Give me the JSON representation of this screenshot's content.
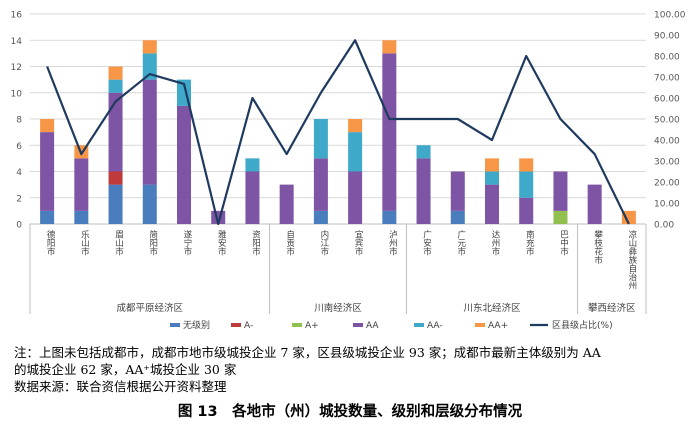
{
  "chart_data": {
    "type": "bar",
    "stacked": true,
    "categories": [
      "德阳市",
      "乐山市",
      "眉山市",
      "简阳市",
      "遂宁市",
      "雅安市",
      "资阳市",
      "自贡市",
      "内江市",
      "宜宾市",
      "泸州市",
      "广安市",
      "广元市",
      "达州市",
      "南充市",
      "巴中市",
      "攀枝花市",
      "凉山彝族自治州"
    ],
    "series": [
      {
        "name": "无级别",
        "color": "#4a7dbd",
        "values": [
          1,
          1,
          3,
          3,
          0,
          0,
          0,
          0,
          1,
          0,
          1,
          0,
          1,
          0,
          0,
          0,
          0,
          0
        ]
      },
      {
        "name": "A-",
        "color": "#c0393b",
        "values": [
          0,
          0,
          1,
          0,
          0,
          0,
          0,
          0,
          0,
          0,
          0,
          0,
          0,
          0,
          0,
          0,
          0,
          0
        ]
      },
      {
        "name": "A+",
        "color": "#92c050",
        "values": [
          0,
          0,
          0,
          0,
          0,
          0,
          0,
          0,
          0,
          0,
          0,
          0,
          0,
          0,
          0,
          1,
          0,
          0
        ]
      },
      {
        "name": "AA",
        "color": "#7e54a4",
        "values": [
          6,
          4,
          6,
          8,
          9,
          1,
          4,
          3,
          4,
          4,
          12,
          5,
          3,
          3,
          2,
          3,
          3,
          0
        ]
      },
      {
        "name": "AA-",
        "color": "#3fa9c9",
        "values": [
          0,
          0,
          1,
          2,
          2,
          0,
          1,
          0,
          3,
          3,
          0,
          1,
          0,
          1,
          2,
          0,
          0,
          0
        ]
      },
      {
        "name": "AA+",
        "color": "#f79646",
        "values": [
          1,
          1,
          1,
          1,
          0,
          0,
          0,
          0,
          0,
          1,
          1,
          0,
          0,
          1,
          1,
          0,
          0,
          1
        ]
      }
    ],
    "line": {
      "name": "区县级占比(%)",
      "color": "#1f3a5f",
      "axis": "right",
      "values": [
        75,
        33.3,
        58.3,
        71.4,
        66.7,
        0,
        60,
        33.3,
        62.5,
        87.5,
        50,
        50,
        50,
        40,
        80,
        50,
        33.3,
        0
      ]
    },
    "ylim": [
      0,
      16
    ],
    "y_ticks": [
      "0",
      "2",
      "4",
      "6",
      "8",
      "10",
      "12",
      "14",
      "16"
    ],
    "y2lim": [
      0,
      100
    ],
    "y2_ticks": [
      "0.00",
      "10.00",
      "20.00",
      "30.00",
      "40.00",
      "50.00",
      "60.00",
      "70.00",
      "80.00",
      "90.00",
      "100.00"
    ],
    "groups": [
      {
        "label": "成都平原经济区",
        "start": 0,
        "end": 6
      },
      {
        "label": "川南经济区",
        "start": 7,
        "end": 10
      },
      {
        "label": "川东北经济区",
        "start": 11,
        "end": 15
      },
      {
        "label": "攀西经济区",
        "start": 16,
        "end": 17
      }
    ],
    "legend_placement": "bottom",
    "grid": "horizontal"
  },
  "notes": {
    "line1": "注：上图未包括成都市，成都市地市级城投企业 7 家，区县级城投企业 93 家；成都市最新主体级别为 AA",
    "line2": "的城投企业 62 家，AA⁺城投企业 30 家",
    "line3": "数据来源：联合资信根据公开资料整理"
  },
  "caption": "图 13　各地市（州）城投数量、级别和层级分布情况"
}
